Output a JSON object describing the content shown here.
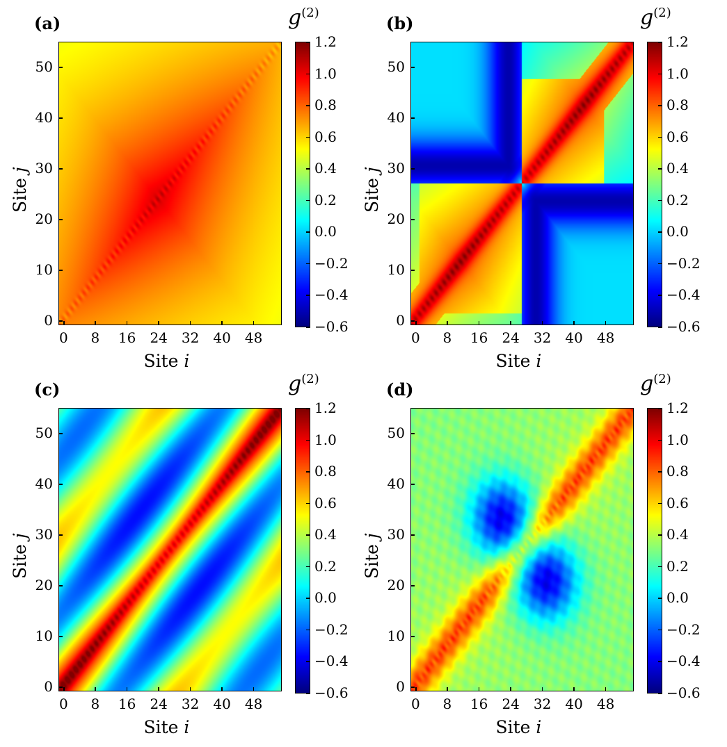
{
  "colorbar": {
    "label": "g",
    "superscript": "(2)",
    "ticks": [
      "1.2",
      "1.0",
      "0.8",
      "0.6",
      "0.4",
      "0.2",
      "0.0",
      "−0.2",
      "−0.4",
      "−0.6"
    ],
    "range": [
      -0.6,
      1.2
    ],
    "colormap": "jet"
  },
  "chart_data": [
    {
      "type": "heatmap",
      "panel": "(a)",
      "xlabel_text": "Site ",
      "xlabel_var": "i",
      "ylabel_text": "Site ",
      "ylabel_var": "j",
      "xticks": [
        "0",
        "8",
        "16",
        "24",
        "32",
        "40",
        "48"
      ],
      "yticks": [
        "0",
        "10",
        "20",
        "30",
        "40",
        "50"
      ],
      "xlim": [
        0,
        54
      ],
      "ylim": [
        0,
        54
      ],
      "colorbar_range": [
        -0.6,
        1.2
      ],
      "pattern": "broad_positive_diagonal",
      "diag_value": 1.05,
      "min_value": 0.35
    },
    {
      "type": "heatmap",
      "panel": "(b)",
      "xlabel_text": "Site ",
      "xlabel_var": "i",
      "ylabel_text": "Site ",
      "ylabel_var": "j",
      "xticks": [
        "0",
        "8",
        "16",
        "24",
        "32",
        "40",
        "48"
      ],
      "yticks": [
        "0",
        "10",
        "20",
        "30",
        "40",
        "50"
      ],
      "xlim": [
        0,
        54
      ],
      "ylim": [
        0,
        54
      ],
      "colorbar_range": [
        -0.6,
        1.2
      ],
      "pattern": "two_domain_blocks",
      "diag_value": 1.0,
      "min_value": -0.5
    },
    {
      "type": "heatmap",
      "panel": "(c)",
      "xlabel_text": "Site ",
      "xlabel_var": "i",
      "ylabel_text": "Site ",
      "ylabel_var": "j",
      "xticks": [
        "0",
        "8",
        "16",
        "24",
        "32",
        "40",
        "48"
      ],
      "yticks": [
        "0",
        "10",
        "20",
        "30",
        "40",
        "50"
      ],
      "xlim": [
        0,
        54
      ],
      "ylim": [
        0,
        54
      ],
      "colorbar_range": [
        -0.6,
        1.2
      ],
      "pattern": "oscillating_stripes",
      "diag_value": 0.95,
      "min_value": -0.45
    },
    {
      "type": "heatmap",
      "panel": "(d)",
      "xlabel_text": "Site ",
      "xlabel_var": "i",
      "ylabel_text": "Site ",
      "ylabel_var": "j",
      "xticks": [
        "0",
        "8",
        "16",
        "24",
        "32",
        "40",
        "48"
      ],
      "yticks": [
        "0",
        "10",
        "20",
        "30",
        "40",
        "50"
      ],
      "xlim": [
        0,
        54
      ],
      "ylim": [
        0,
        54
      ],
      "colorbar_range": [
        -0.6,
        1.2
      ],
      "pattern": "noisy_domains",
      "diag_value": 0.85,
      "min_value": -0.4
    }
  ]
}
